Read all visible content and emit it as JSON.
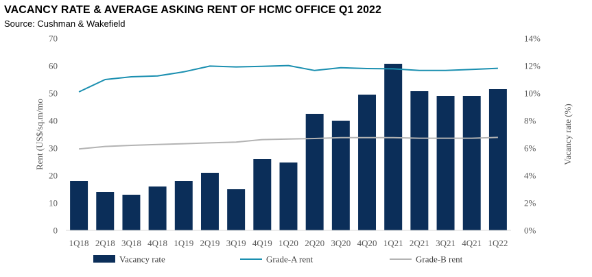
{
  "title": "VACANCY RATE & AVERAGE ASKING RENT OF HCMC OFFICE Q1 2022",
  "subtitle": "Source: Cushman & Wakefield",
  "chart_data": {
    "type": "bar",
    "categories": [
      "1Q18",
      "2Q18",
      "3Q18",
      "4Q18",
      "1Q19",
      "2Q19",
      "3Q19",
      "4Q19",
      "1Q20",
      "2Q20",
      "3Q20",
      "4Q20",
      "1Q21",
      "2Q21",
      "3Q21",
      "4Q21",
      "1Q22"
    ],
    "ylabel": "Rent (US$/sq.m/mo",
    "y2label": "Vacancy rate (%)",
    "ylim": [
      0,
      70
    ],
    "y2lim": [
      0,
      14
    ],
    "yticks": [
      "0",
      "10",
      "20",
      "30",
      "40",
      "50",
      "60",
      "70"
    ],
    "y2ticks": [
      "0%",
      "2%",
      "4%",
      "6%",
      "8%",
      "10%",
      "12%",
      "14%"
    ],
    "legend_position": "bottom",
    "grid": false,
    "series": [
      {
        "name": "Vacancy rate",
        "type": "bar",
        "axis": "right",
        "color": "#0b2e59",
        "values": [
          3.6,
          2.8,
          2.6,
          3.2,
          3.6,
          4.2,
          3.0,
          5.2,
          4.95,
          8.5,
          8.0,
          9.9,
          12.15,
          10.15,
          9.8,
          9.8,
          10.3
        ]
      },
      {
        "name": "Grade-A rent",
        "type": "line",
        "axis": "left",
        "color": "#1a8fb0",
        "values": [
          50.5,
          55.0,
          56.0,
          56.3,
          57.8,
          59.9,
          59.6,
          59.8,
          60.1,
          58.3,
          59.3,
          59.0,
          58.9,
          58.3,
          58.3,
          58.7,
          59.1
        ]
      },
      {
        "name": "Grade-B rent",
        "type": "line",
        "axis": "left",
        "color": "#b3b3b3",
        "values": [
          29.7,
          30.6,
          31.0,
          31.3,
          31.6,
          31.9,
          32.2,
          33.1,
          33.3,
          33.5,
          33.8,
          33.8,
          33.8,
          33.6,
          33.6,
          33.6,
          33.9
        ]
      }
    ]
  }
}
